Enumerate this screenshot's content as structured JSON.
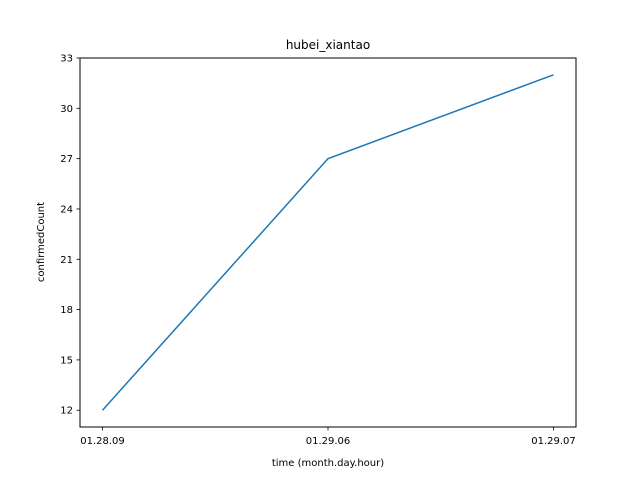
{
  "chart_data": {
    "type": "line",
    "title": "hubei_xiantao",
    "xlabel": "time (month.day.hour)",
    "ylabel": "confirmedCount",
    "categories": [
      "01.28.09",
      "01.29.06",
      "01.29.07"
    ],
    "series": [
      {
        "values": [
          12,
          27,
          32
        ],
        "color": "#1f77b4"
      }
    ],
    "yticks": [
      12,
      15,
      18,
      21,
      24,
      27,
      30,
      33
    ],
    "ylim": [
      11,
      33
    ],
    "grid": false,
    "legend": "none"
  }
}
